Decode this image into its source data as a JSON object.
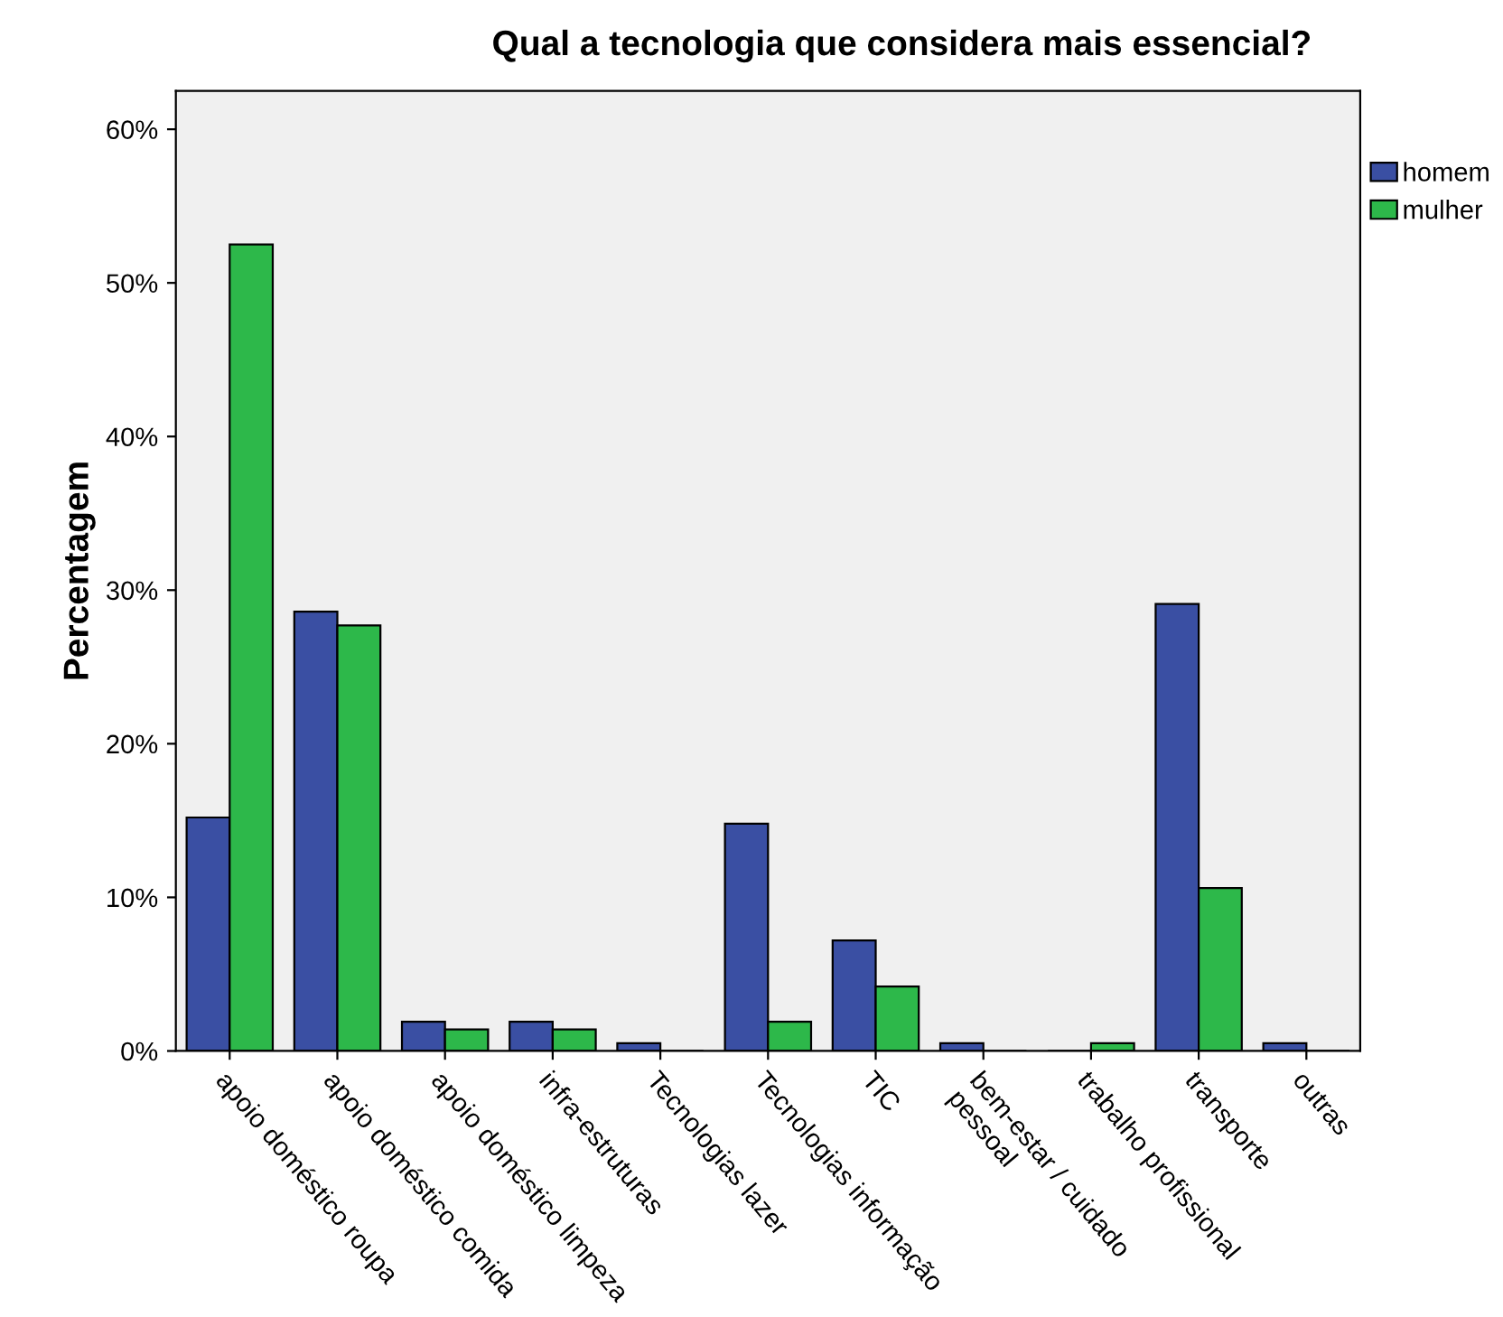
{
  "chart_data": {
    "type": "bar",
    "title": "Qual a tecnologia que considera mais essencial?",
    "ylabel": "Percentagem",
    "categories": [
      "apoio doméstico roupa",
      "apoio doméstico comida",
      "apoio doméstico limpeza",
      "infra-estruturas",
      "Tecnologias lazer",
      "Tecnologias informação",
      "TIC",
      "bem-estar / cuidado\npessoal",
      "trabalho profissional",
      "transporte",
      "outras"
    ],
    "series": [
      {
        "name": "homem",
        "color": "#3a4fa3",
        "values": [
          15.2,
          28.6,
          1.9,
          1.9,
          0.5,
          14.8,
          7.2,
          0.5,
          0,
          29.1,
          0.5
        ]
      },
      {
        "name": "mulher",
        "color": "#2db84a",
        "values": [
          52.5,
          27.7,
          1.4,
          1.4,
          0,
          1.9,
          4.2,
          0,
          0.5,
          10.6,
          0
        ]
      }
    ],
    "ylim": [
      0,
      62.5
    ],
    "yticks": [
      {
        "value": 0,
        "label": "0%"
      },
      {
        "value": 10,
        "label": "10%"
      },
      {
        "value": 20,
        "label": "20%"
      },
      {
        "value": 30,
        "label": "30%"
      },
      {
        "value": 40,
        "label": "40%"
      },
      {
        "value": 50,
        "label": "50%"
      },
      {
        "value": 60,
        "label": "60%"
      }
    ],
    "grid": false,
    "legend": "top right"
  }
}
